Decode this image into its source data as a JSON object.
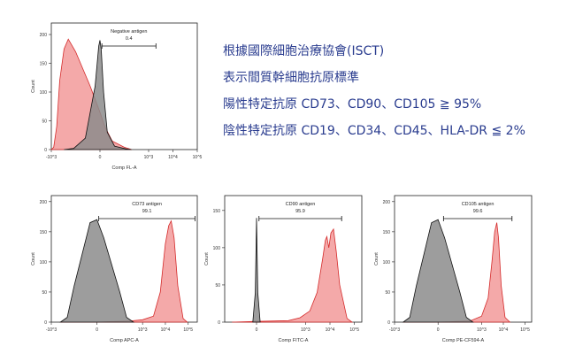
{
  "text_lines": [
    "根據國際細胞治療協會(ISCT)",
    "表示間質幹細胞抗原標準",
    "陽性特定抗原 CD73、CD90、CD105 ≧ 95%",
    "陰性特定抗原 CD19、CD34、CD45、HLA-DR ≦ 2%"
  ],
  "colors": {
    "text": "#2a3c8f",
    "sample_fill": "#f08c8c",
    "sample_stroke": "#d42a2a",
    "control_fill": "#8c8c8c",
    "control_stroke": "#111111"
  },
  "chart_data": [
    {
      "type": "area",
      "gate_label": "Negative antigen",
      "gate_value": "0.4",
      "gate_range": [
        8,
        2000
      ],
      "xlabel": "Comp FL-A",
      "ylabel": "Count",
      "x_ticks": [
        "-10^3",
        "0",
        "10^3",
        "10^4",
        "10^5"
      ],
      "x_range": [
        -1000,
        100000
      ],
      "ylim": [
        0,
        220
      ],
      "y_ticks": [
        0,
        50,
        100,
        150,
        200
      ],
      "control": {
        "x": [
          -300,
          -120,
          -60,
          -20,
          -5,
          0,
          5,
          15,
          30,
          60,
          120,
          200
        ],
        "y": [
          0,
          2,
          20,
          110,
          180,
          190,
          175,
          100,
          30,
          6,
          1,
          0
        ]
      },
      "sample": {
        "x": [
          -1000,
          -800,
          -600,
          -450,
          -300,
          -200,
          -100,
          -40,
          0,
          20,
          50,
          100,
          200
        ],
        "y": [
          0,
          4,
          40,
          120,
          175,
          192,
          170,
          110,
          65,
          40,
          15,
          4,
          0
        ]
      }
    },
    {
      "type": "area",
      "gate_label": "CD73 antigen",
      "gate_value": "99.1",
      "gate_range": [
        8,
        200000
      ],
      "xlabel": "Comp APC-A",
      "ylabel": "Count",
      "x_ticks": [
        "-10^3",
        "0",
        "10^3",
        "10^4",
        "10^5"
      ],
      "x_range": [
        -1000,
        250000
      ],
      "ylim": [
        0,
        210
      ],
      "y_ticks": [
        0,
        50,
        100,
        150,
        200
      ],
      "control": {
        "x": [
          -400,
          -200,
          -100,
          -30,
          0,
          30,
          100,
          200,
          400
        ],
        "y": [
          0,
          8,
          60,
          165,
          170,
          140,
          50,
          8,
          0
        ]
      },
      "sample": {
        "x": [
          -400,
          0,
          300,
          1000,
          3000,
          6000,
          10000,
          14000,
          18000,
          24000,
          35000,
          60000,
          90000
        ],
        "y": [
          0,
          0,
          2,
          4,
          10,
          50,
          130,
          160,
          168,
          140,
          60,
          6,
          0
        ]
      }
    },
    {
      "type": "area",
      "gate_label": "CD90 antigen",
      "gate_value": "95.9",
      "gate_range": [
        10,
        30000
      ],
      "xlabel": "Comp FITC-A",
      "ylabel": "Count",
      "x_ticks": [
        "0",
        "10^3",
        "10^4",
        "10^5"
      ],
      "x_range": [
        -200,
        200000
      ],
      "ylim": [
        0,
        170
      ],
      "y_ticks": [
        0,
        50,
        100,
        150
      ],
      "control": {
        "x": [
          -15,
          -5,
          0,
          5,
          15
        ],
        "y": [
          0,
          40,
          140,
          40,
          0
        ]
      },
      "sample": {
        "x": [
          -100,
          0,
          200,
          600,
          1500,
          3000,
          5000,
          6500,
          7500,
          9000,
          11000,
          14000,
          18000,
          25000,
          50000,
          80000
        ],
        "y": [
          0,
          1,
          2,
          6,
          15,
          40,
          85,
          110,
          115,
          100,
          120,
          125,
          95,
          50,
          5,
          0
        ]
      }
    },
    {
      "type": "area",
      "gate_label": "CD105 antigen",
      "gate_value": "99.6",
      "gate_range": [
        25,
        25000
      ],
      "xlabel": "Comp PE-CF594-A",
      "ylabel": "Count",
      "x_ticks": [
        "-10^3",
        "0",
        "10^3",
        "10^4",
        "10^5"
      ],
      "x_range": [
        -1000,
        200000
      ],
      "ylim": [
        0,
        210
      ],
      "y_ticks": [
        0,
        50,
        100,
        150,
        200
      ],
      "control": {
        "x": [
          -400,
          -200,
          -100,
          -30,
          0,
          30,
          100,
          200,
          400
        ],
        "y": [
          0,
          8,
          60,
          165,
          170,
          140,
          50,
          8,
          0
        ]
      },
      "sample": {
        "x": [
          -400,
          0,
          300,
          1000,
          2000,
          3000,
          4000,
          5000,
          6000,
          8000,
          12000,
          20000
        ],
        "y": [
          0,
          0,
          2,
          10,
          40,
          100,
          150,
          165,
          140,
          60,
          8,
          0
        ]
      }
    }
  ]
}
